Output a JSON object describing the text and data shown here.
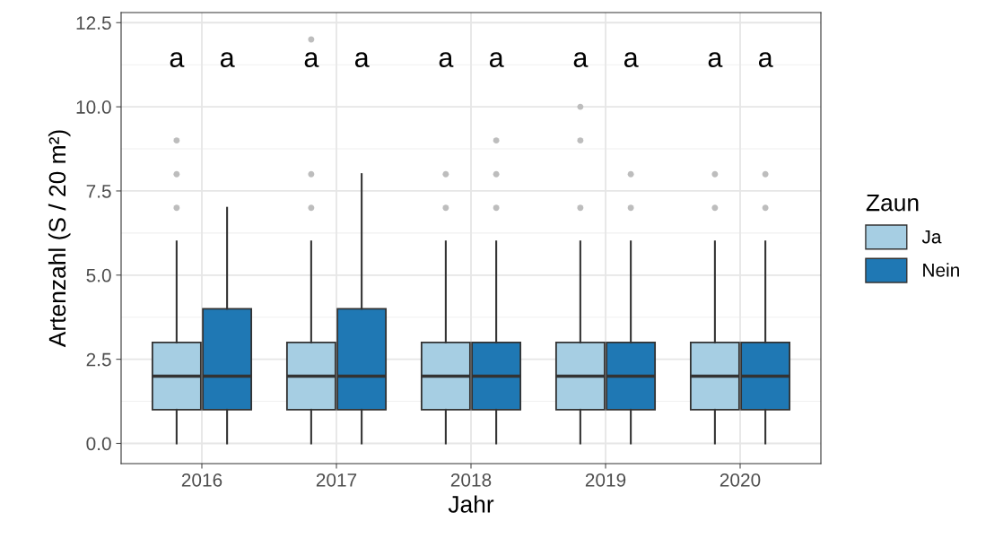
{
  "chart_data": {
    "type": "box",
    "xlabel": "Jahr",
    "ylabel": "Artenzahl (S / 20 m²)",
    "legend_title": "Zaun",
    "legend": "right",
    "grid": true,
    "categories": [
      "2016",
      "2017",
      "2018",
      "2019",
      "2020"
    ],
    "ylim": [
      -0.6,
      12.8
    ],
    "yticks": [
      {
        "value": 0,
        "label": "0.0"
      },
      {
        "value": 2.5,
        "label": "2.5"
      },
      {
        "value": 5,
        "label": "5.0"
      },
      {
        "value": 7.5,
        "label": "7.5"
      },
      {
        "value": 10,
        "label": "10.0"
      },
      {
        "value": 12.5,
        "label": "12.5"
      }
    ],
    "series": [
      {
        "name": "Ja",
        "color": "#a6cee3",
        "boxes": [
          {
            "low": 0,
            "q1": 1,
            "median": 2,
            "q3": 3,
            "high": 6,
            "outliers": [
              7,
              8,
              9
            ]
          },
          {
            "low": 0,
            "q1": 1,
            "median": 2,
            "q3": 3,
            "high": 6,
            "outliers": [
              7,
              8,
              12
            ]
          },
          {
            "low": 0,
            "q1": 1,
            "median": 2,
            "q3": 3,
            "high": 6,
            "outliers": [
              7,
              8
            ]
          },
          {
            "low": 0,
            "q1": 1,
            "median": 2,
            "q3": 3,
            "high": 6,
            "outliers": [
              7,
              9,
              10
            ]
          },
          {
            "low": 0,
            "q1": 1,
            "median": 2,
            "q3": 3,
            "high": 6,
            "outliers": [
              7,
              8
            ]
          }
        ]
      },
      {
        "name": "Nein",
        "color": "#1f78b4",
        "boxes": [
          {
            "low": 0,
            "q1": 1,
            "median": 2,
            "q3": 4,
            "high": 7
          },
          {
            "low": 0,
            "q1": 1,
            "median": 2,
            "q3": 4,
            "high": 8
          },
          {
            "low": 0,
            "q1": 1,
            "median": 2,
            "q3": 3,
            "high": 6,
            "outliers": [
              7,
              8,
              9
            ]
          },
          {
            "low": 0,
            "q1": 1,
            "median": 2,
            "q3": 3,
            "high": 6,
            "outliers": [
              7,
              8
            ]
          },
          {
            "low": 0,
            "q1": 1,
            "median": 2,
            "q3": 3,
            "high": 6,
            "outliers": [
              7,
              8
            ]
          }
        ]
      }
    ],
    "annotations": [
      "a",
      "a",
      "a",
      "a",
      "a",
      "a",
      "a",
      "a",
      "a",
      "a"
    ]
  }
}
